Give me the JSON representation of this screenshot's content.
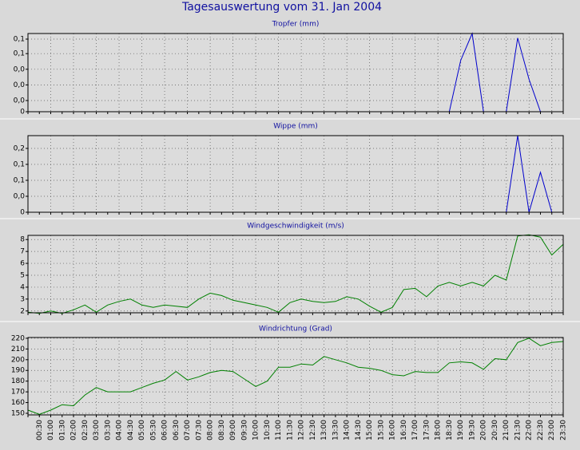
{
  "title": "Tagesauswertung vom 31. Jan 2004",
  "chart_data": [
    {
      "type": "line",
      "title": "Tropfer (mm)",
      "ylim": [
        0,
        0.07
      ],
      "yticks": [
        0,
        {
          "value": 0.01,
          "label": "0,0"
        },
        {
          "value": 0.024,
          "label": "0,0"
        },
        {
          "value": 0.038,
          "label": "0,0"
        },
        {
          "value": 0.052,
          "label": "0,1"
        },
        {
          "value": 0.065,
          "label": "0,1"
        }
      ],
      "grid": true,
      "series": [
        {
          "color": "#0000cc",
          "values": [
            null,
            null,
            null,
            null,
            null,
            null,
            null,
            null,
            null,
            null,
            null,
            null,
            null,
            null,
            null,
            null,
            null,
            null,
            null,
            null,
            null,
            null,
            null,
            null,
            null,
            null,
            null,
            null,
            null,
            null,
            null,
            null,
            null,
            null,
            null,
            null,
            null,
            0,
            0.046,
            0.07,
            0,
            null,
            0,
            0.066,
            0.029,
            0,
            null,
            null
          ]
        }
      ]
    },
    {
      "type": "line",
      "title": "Wippe (mm)",
      "ylim": [
        0,
        0.216
      ],
      "yticks": [
        0,
        {
          "value": 0.045,
          "label": "0,0"
        },
        {
          "value": 0.09,
          "label": "0,1"
        },
        {
          "value": 0.135,
          "label": "0,1"
        },
        {
          "value": 0.18,
          "label": "0,2"
        }
      ],
      "grid": true,
      "series": [
        {
          "color": "#0000cc",
          "values": [
            null,
            null,
            null,
            null,
            null,
            null,
            null,
            null,
            null,
            null,
            null,
            null,
            null,
            null,
            null,
            null,
            null,
            null,
            null,
            null,
            null,
            null,
            null,
            null,
            null,
            null,
            null,
            null,
            null,
            null,
            null,
            null,
            null,
            null,
            null,
            null,
            null,
            null,
            null,
            null,
            null,
            null,
            0,
            0.216,
            0,
            0.1125,
            0,
            null
          ]
        }
      ]
    },
    {
      "type": "line",
      "title": "Windgeschwindigkeit (m/s)",
      "ylim": [
        1.85,
        8.35
      ],
      "yticks": [
        2,
        3,
        4,
        5,
        6,
        7,
        8
      ],
      "grid": true,
      "series": [
        {
          "color": "#008000",
          "values": [
            1.9,
            1.8,
            2.0,
            1.8,
            2.1,
            2.5,
            1.9,
            2.5,
            2.8,
            3.0,
            2.5,
            2.3,
            2.5,
            2.4,
            2.3,
            3.0,
            3.5,
            3.3,
            2.9,
            2.7,
            2.5,
            2.3,
            1.9,
            2.7,
            3.0,
            2.8,
            2.7,
            2.8,
            3.2,
            3.0,
            2.4,
            1.9,
            2.3,
            3.8,
            3.9,
            3.2,
            4.1,
            4.4,
            4.1,
            4.4,
            4.1,
            5.0,
            4.6,
            8.3,
            8.4,
            8.2,
            6.7,
            7.6
          ]
        }
      ]
    },
    {
      "type": "line",
      "title": "Windrichtung (Grad)",
      "ylim": [
        148.5,
        220.7
      ],
      "yticks": [
        150,
        160,
        170,
        180,
        190,
        200,
        210,
        220
      ],
      "grid": true,
      "categories": [
        null,
        "00:30",
        "01:00",
        "01:30",
        "02:00",
        "02:30",
        "03:00",
        "03:30",
        "04:00",
        "04:30",
        "05:00",
        "05:30",
        "06:00",
        "06:30",
        "07:00",
        "07:30",
        "08:00",
        "08:30",
        "09:00",
        "09:30",
        "10:00",
        "10:30",
        "11:00",
        "11:30",
        "12:00",
        "12:30",
        "13:00",
        "13:30",
        "14:00",
        "14:30",
        "15:00",
        "15:30",
        "16:00",
        "16:30",
        "17:00",
        "17:30",
        "18:00",
        "18:30",
        "19:00",
        "19:30",
        "20:00",
        "20:30",
        "21:00",
        "21:30",
        "22:00",
        "22:30",
        "23:00",
        "23:30"
      ],
      "series": [
        {
          "color": "#008000",
          "values": [
            153,
            149,
            153,
            158,
            157,
            167,
            174,
            170,
            170,
            170,
            174,
            178,
            181,
            189,
            181,
            184,
            188,
            190,
            189,
            182,
            175,
            180,
            193,
            193,
            196,
            195,
            203,
            200,
            197,
            193,
            192,
            190,
            186,
            185,
            189,
            188,
            188,
            197,
            198,
            197,
            191,
            201,
            200,
            216,
            220,
            213,
            216,
            217
          ]
        }
      ]
    }
  ]
}
